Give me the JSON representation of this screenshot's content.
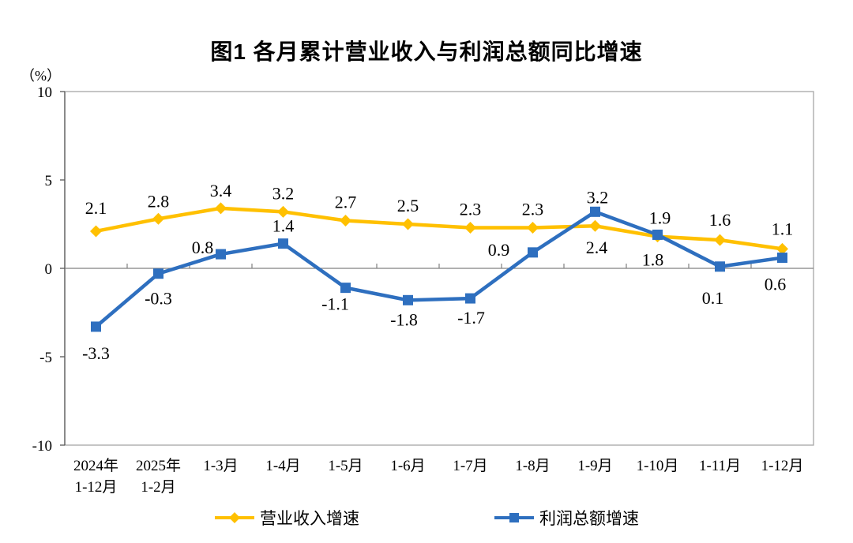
{
  "chart_data": {
    "type": "line",
    "title": "图1  各月累计营业收入与利润总额同比增速",
    "unit_label": "（%）",
    "background": "#FFFFFF",
    "categories": [
      [
        "2024年",
        "1-12月"
      ],
      [
        "2025年",
        "1-2月"
      ],
      [
        "1-3月"
      ],
      [
        "1-4月"
      ],
      [
        "1-5月"
      ],
      [
        "1-6月"
      ],
      [
        "1-7月"
      ],
      [
        "1-8月"
      ],
      [
        "1-9月"
      ],
      [
        "1-10月"
      ],
      [
        "1-11月"
      ],
      [
        "1-12月"
      ]
    ],
    "ylim": [
      -10,
      10
    ],
    "yticks": [
      10,
      5,
      0,
      -5,
      -10
    ],
    "grid": false,
    "legend_position": "bottom",
    "axis_colors": {
      "border": "#A6A6A6",
      "axis": "#595959",
      "zero_line": "#808080"
    },
    "series": [
      {
        "name": "营业收入增速",
        "color": "#FFC000",
        "marker": "diamond",
        "values": [
          2.1,
          2.8,
          3.4,
          3.2,
          2.7,
          2.5,
          2.3,
          2.3,
          2.4,
          1.8,
          1.6,
          1.1
        ],
        "label_offsets": [
          [
            0,
            -30
          ],
          [
            0,
            -23
          ],
          [
            0,
            -23
          ],
          [
            0,
            -24
          ],
          [
            0,
            -24
          ],
          [
            0,
            -24
          ],
          [
            0,
            -24
          ],
          [
            0,
            -24
          ],
          [
            2,
            27
          ],
          [
            -6,
            29
          ],
          [
            0,
            -26
          ],
          [
            0,
            -26
          ]
        ]
      },
      {
        "name": "利润总额增速",
        "color": "#2E6FBF",
        "marker": "square",
        "values": [
          -3.3,
          -0.3,
          0.8,
          1.4,
          -1.1,
          -1.8,
          -1.7,
          0.9,
          3.2,
          1.9,
          0.1,
          0.6
        ],
        "label_offsets": [
          [
            0,
            33
          ],
          [
            0,
            31
          ],
          [
            -23,
            -9
          ],
          [
            0,
            -23
          ],
          [
            -13,
            20
          ],
          [
            -5,
            24
          ],
          [
            1,
            24
          ],
          [
            -43,
            -4
          ],
          [
            3,
            -19
          ],
          [
            3,
            -22
          ],
          [
            -9,
            39
          ],
          [
            -9,
            33
          ]
        ]
      }
    ]
  }
}
